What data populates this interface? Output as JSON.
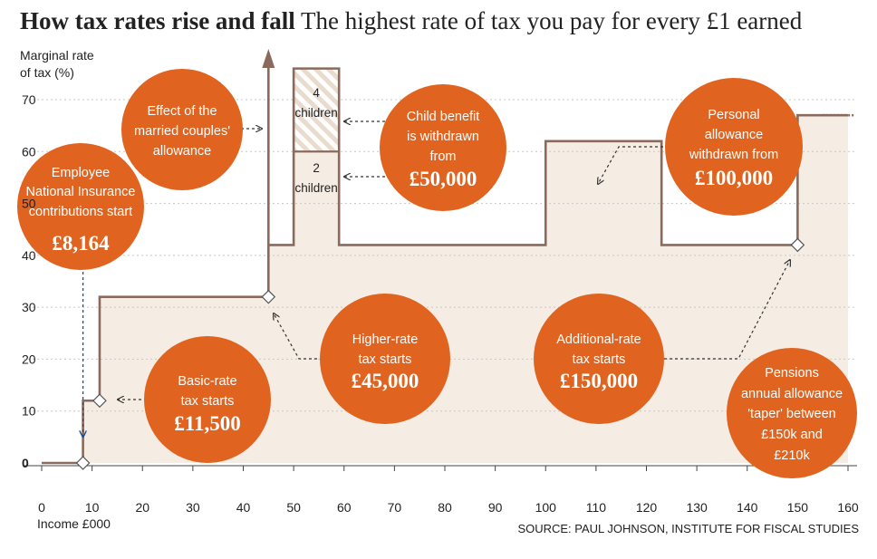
{
  "title": "How tax rates rise and fall",
  "subtitle": "The highest rate of tax you pay for every £1 earned",
  "source": "SOURCE: PAUL JOHNSON, INSTITUTE FOR FISCAL STUDIES",
  "chart_data": {
    "type": "line",
    "title": "How tax rates rise and fall",
    "subtitle": "The highest rate of tax you pay for every £1 earned",
    "xlabel": "Income £000",
    "ylabel_lines": [
      "Marginal rate",
      "of tax (%)"
    ],
    "xlim": [
      0,
      160
    ],
    "ylim": [
      0,
      70
    ],
    "x_ticks": [
      0,
      10,
      20,
      30,
      40,
      50,
      60,
      70,
      80,
      90,
      100,
      110,
      120,
      130,
      140,
      150,
      160
    ],
    "y_ticks": [
      0,
      10,
      20,
      30,
      40,
      50,
      60,
      70
    ],
    "colors": {
      "line": "#8a6a5c",
      "fill": "#f5ece4",
      "circle": "#e06320",
      "hatch": "#e9dccd"
    },
    "series": [
      {
        "points": [
          [
            0,
            0
          ],
          [
            8.2,
            0
          ],
          [
            8.2,
            12
          ],
          [
            11.5,
            12
          ],
          [
            11.5,
            32
          ],
          [
            45,
            32
          ],
          [
            45,
            42
          ],
          [
            50,
            42
          ],
          [
            50,
            76
          ],
          [
            59,
            76
          ],
          [
            59,
            42
          ],
          [
            100,
            42
          ],
          [
            100,
            62
          ],
          [
            123,
            62
          ],
          [
            123,
            42
          ],
          [
            150,
            42
          ],
          [
            150,
            67
          ],
          [
            160,
            67
          ]
        ]
      }
    ],
    "child_benefit_band": {
      "x": [
        50,
        59
      ],
      "y_two_children": [
        42,
        60
      ],
      "y_four_children": [
        60,
        76
      ]
    },
    "band_labels": {
      "four": [
        "4",
        "children"
      ],
      "two": [
        "2",
        "children"
      ]
    },
    "markers": [
      {
        "x": 8.2,
        "y": 0
      },
      {
        "x": 11.5,
        "y": 12
      },
      {
        "x": 45,
        "y": 32
      },
      {
        "x": 150,
        "y": 42
      }
    ],
    "annotations": [
      {
        "lines": [
          "Employee",
          "National Insurance",
          "contributions start"
        ],
        "big": "£8,164"
      },
      {
        "lines": [
          "Effect of the",
          "married couples'",
          "allowance"
        ],
        "big": ""
      },
      {
        "lines": [
          "Child benefit",
          "is withdrawn",
          "from"
        ],
        "big": "£50,000"
      },
      {
        "lines": [
          "Personal",
          "allowance",
          "withdrawn from"
        ],
        "big": "£100,000"
      },
      {
        "lines": [
          "Basic-rate",
          "tax starts"
        ],
        "big": "£11,500"
      },
      {
        "lines": [
          "Higher-rate",
          "tax starts"
        ],
        "big": "£45,000"
      },
      {
        "lines": [
          "Additional-rate",
          "tax starts"
        ],
        "big": "£150,000"
      },
      {
        "lines": [
          "Pensions",
          "annual allowance",
          "'taper' between",
          "£150k and",
          "£210k"
        ],
        "big": ""
      }
    ]
  }
}
